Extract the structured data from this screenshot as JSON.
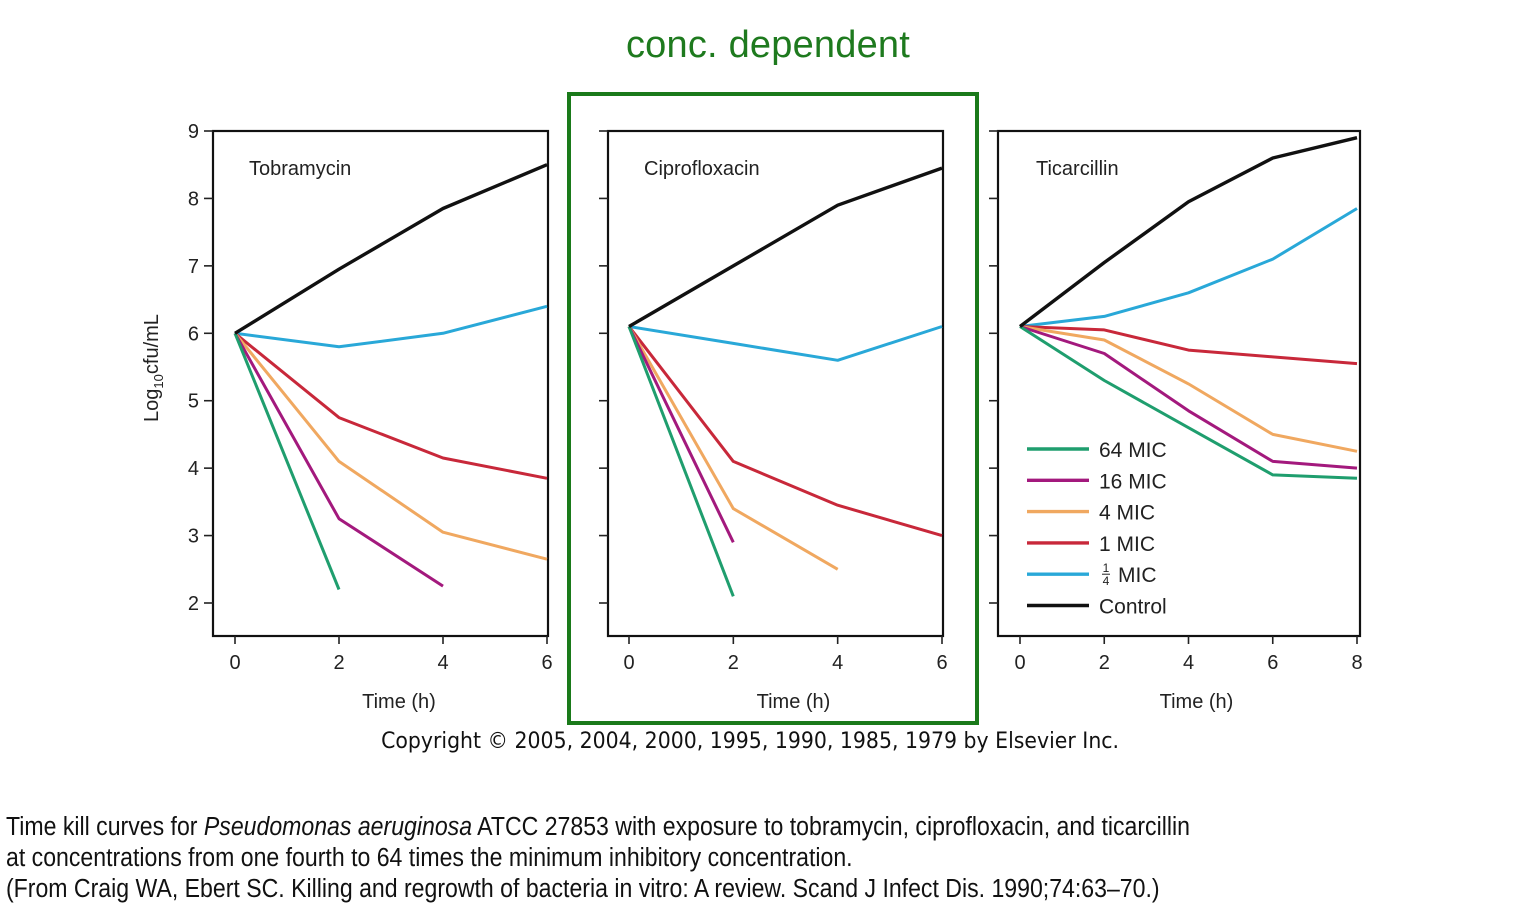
{
  "header": {
    "title": "conc. dependent"
  },
  "copyright": "Copyright © 2005, 2004, 2000, 1995, 1990, 1985, 1979 by Elsevier Inc.",
  "caption": {
    "line1_prefix": "Time kill curves for ",
    "line1_italic": "Pseudomonas aeruginosa",
    "line1_suffix": " ATCC 27853 with exposure to tobramycin, ciprofloxacin, and ticarcillin",
    "line2": "at concentrations from one fourth to 64 times the minimum inhibitory concentration.",
    "line3": "(From Craig WA, Ebert SC. Killing and regrowth of bacteria in vitro: A review. Scand J Infect Dis. 1990;74:63–70.)"
  },
  "colors": {
    "highlight": "#1a7a1a",
    "64 MIC": "#1f9e6e",
    "16 MIC": "#a3197d",
    "4 MIC": "#f0a860",
    "1 MIC": "#c8283a",
    "1/4 MIC": "#29a8d8",
    "Control": "#111111"
  },
  "legend": {
    "placement": "bottom-left of Ticarcillin panel",
    "entries": [
      {
        "key": "64 MIC",
        "label": "64 MIC"
      },
      {
        "key": "16 MIC",
        "label": "16 MIC"
      },
      {
        "key": "4 MIC",
        "label": "4 MIC"
      },
      {
        "key": "1 MIC",
        "label": "1 MIC"
      },
      {
        "key": "1/4 MIC",
        "label": "MIC",
        "fraction_num": "1",
        "fraction_den": "4"
      },
      {
        "key": "Control",
        "label": "Control"
      }
    ]
  },
  "chart_data": [
    {
      "type": "line",
      "title": "Tobramycin",
      "xlabel": "Time (h)",
      "ylabel": "Log10cfu/mL",
      "ylabel_main": "Log",
      "ylabel_sub": "10",
      "ylabel_rest": "cfu/mL",
      "xlim": [
        0,
        6
      ],
      "ylim": [
        1.5,
        9
      ],
      "xticks": [
        0,
        2,
        4,
        6
      ],
      "yticks": [
        2,
        3,
        4,
        5,
        6,
        7,
        8,
        9
      ],
      "show_ytick_labels": true,
      "highlighted": false,
      "grid": false,
      "series": [
        {
          "name": "Control",
          "x": [
            0,
            2,
            4,
            6
          ],
          "y": [
            6.0,
            6.95,
            7.85,
            8.5
          ]
        },
        {
          "name": "1/4 MIC",
          "x": [
            0,
            2,
            4,
            6
          ],
          "y": [
            6.0,
            5.8,
            6.0,
            6.4
          ]
        },
        {
          "name": "1 MIC",
          "x": [
            0,
            2,
            4,
            6
          ],
          "y": [
            6.0,
            4.75,
            4.15,
            3.85
          ]
        },
        {
          "name": "4 MIC",
          "x": [
            0,
            2,
            4,
            6
          ],
          "y": [
            6.0,
            4.1,
            3.05,
            2.65
          ]
        },
        {
          "name": "16 MIC",
          "x": [
            0,
            2,
            4
          ],
          "y": [
            6.0,
            3.25,
            2.25
          ]
        },
        {
          "name": "64 MIC",
          "x": [
            0,
            2
          ],
          "y": [
            6.0,
            2.2
          ]
        }
      ]
    },
    {
      "type": "line",
      "title": "Ciprofloxacin",
      "xlabel": "Time (h)",
      "ylabel": "",
      "xlim": [
        0,
        6
      ],
      "ylim": [
        1.5,
        9
      ],
      "xticks": [
        0,
        2,
        4,
        6
      ],
      "yticks": [
        2,
        3,
        4,
        5,
        6,
        7,
        8,
        9
      ],
      "show_ytick_labels": false,
      "highlighted": true,
      "grid": false,
      "series": [
        {
          "name": "Control",
          "x": [
            0,
            2,
            4,
            6
          ],
          "y": [
            6.1,
            7.0,
            7.9,
            8.45
          ]
        },
        {
          "name": "1/4 MIC",
          "x": [
            0,
            2,
            4,
            6
          ],
          "y": [
            6.1,
            5.85,
            5.6,
            6.1
          ]
        },
        {
          "name": "1 MIC",
          "x": [
            0,
            2,
            4,
            6
          ],
          "y": [
            6.1,
            4.1,
            3.45,
            3.0
          ]
        },
        {
          "name": "4 MIC",
          "x": [
            0,
            2,
            4
          ],
          "y": [
            6.1,
            3.4,
            2.5
          ]
        },
        {
          "name": "16 MIC",
          "x": [
            0,
            2
          ],
          "y": [
            6.1,
            2.9
          ]
        },
        {
          "name": "64 MIC",
          "x": [
            0,
            2
          ],
          "y": [
            6.1,
            2.1
          ]
        }
      ]
    },
    {
      "type": "line",
      "title": "Ticarcillin",
      "xlabel": "Time (h)",
      "ylabel": "",
      "xlim": [
        0,
        8
      ],
      "ylim": [
        1.5,
        9
      ],
      "xticks": [
        0,
        2,
        4,
        6,
        8
      ],
      "yticks": [
        2,
        3,
        4,
        5,
        6,
        7,
        8,
        9
      ],
      "show_ytick_labels": false,
      "highlighted": false,
      "grid": false,
      "series": [
        {
          "name": "Control",
          "x": [
            0,
            2,
            4,
            6,
            8
          ],
          "y": [
            6.1,
            7.05,
            7.95,
            8.6,
            8.9
          ]
        },
        {
          "name": "1/4 MIC",
          "x": [
            0,
            2,
            4,
            6,
            8
          ],
          "y": [
            6.1,
            6.25,
            6.6,
            7.1,
            7.85
          ]
        },
        {
          "name": "1 MIC",
          "x": [
            0,
            2,
            4,
            6,
            8
          ],
          "y": [
            6.1,
            6.05,
            5.75,
            5.65,
            5.55
          ]
        },
        {
          "name": "4 MIC",
          "x": [
            0,
            2,
            4,
            6,
            8
          ],
          "y": [
            6.1,
            5.9,
            5.25,
            4.5,
            4.25
          ]
        },
        {
          "name": "16 MIC",
          "x": [
            0,
            2,
            4,
            6,
            8
          ],
          "y": [
            6.1,
            5.7,
            4.85,
            4.1,
            4.0
          ]
        },
        {
          "name": "64 MIC",
          "x": [
            0,
            2,
            4,
            6,
            8
          ],
          "y": [
            6.1,
            5.3,
            4.6,
            3.9,
            3.85
          ]
        }
      ]
    }
  ]
}
